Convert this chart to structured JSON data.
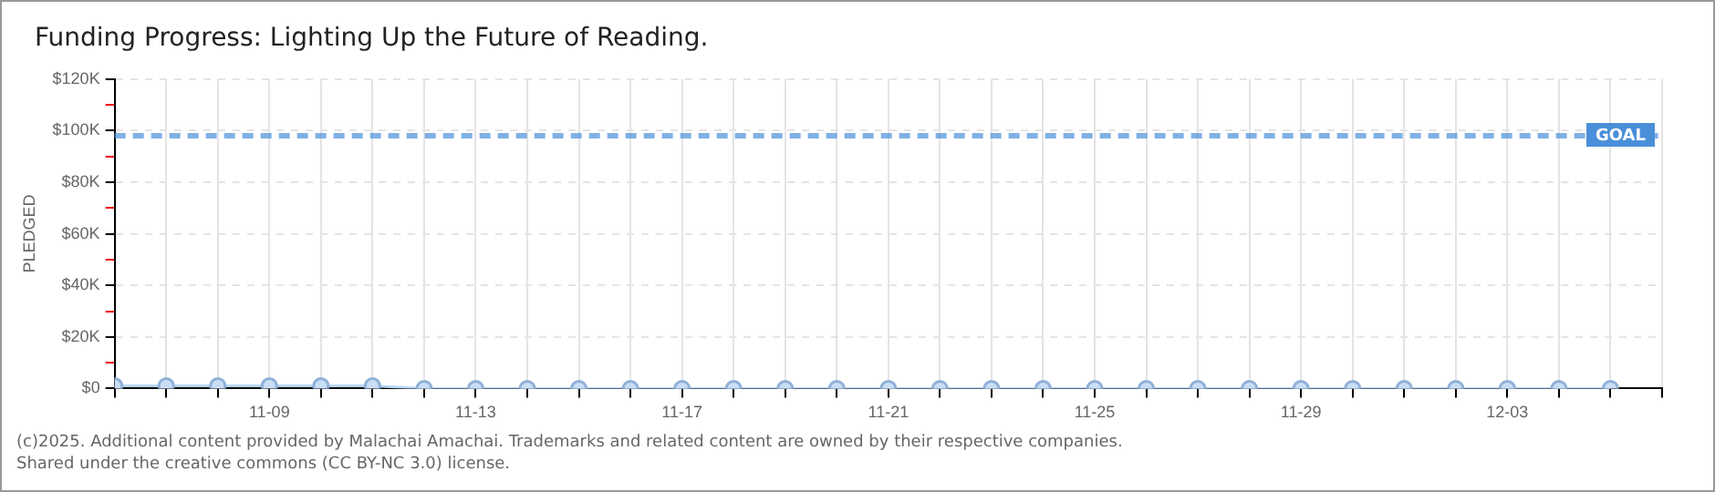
{
  "chart_data": {
    "type": "line",
    "title": "Funding Progress: Lighting Up the Future of Reading.",
    "ylabel": "PLEDGED",
    "x": [
      "--11-06",
      "--11-07",
      "--11-08",
      "--11-09",
      "--11-10",
      "--11-11",
      "--11-12",
      "--11-13",
      "--11-14",
      "--11-15",
      "--11-16",
      "--11-17",
      "--11-18",
      "--11-19",
      "--11-20",
      "--11-21",
      "--11-22",
      "--11-23",
      "--11-24",
      "--11-25",
      "--11-26",
      "--11-27",
      "--11-28",
      "--11-29",
      "--11-30",
      "--12-01",
      "--12-02",
      "--12-03",
      "--12-04",
      "--12-05"
    ],
    "series": [
      {
        "color": "#b8d6f5",
        "values": [
          1000,
          1000,
          1000,
          1000,
          1000,
          1000,
          0,
          0,
          0,
          0,
          0,
          0,
          0,
          0,
          0,
          0,
          0,
          0,
          0,
          0,
          0,
          0,
          0,
          0,
          0,
          0,
          0,
          0,
          0,
          0
        ]
      }
    ],
    "xlim": [
      "--11-06",
      "--12-06"
    ],
    "xticks": [
      {
        "value": "--11-06",
        "label": null
      },
      {
        "value": "--11-07",
        "label": null
      },
      {
        "value": "--11-08",
        "label": null
      },
      {
        "value": "--11-09",
        "label": "11-09"
      },
      {
        "value": "--11-10",
        "label": null
      },
      {
        "value": "--11-11",
        "label": null
      },
      {
        "value": "--11-12",
        "label": null
      },
      {
        "value": "--11-13",
        "label": "11-13"
      },
      {
        "value": "--11-14",
        "label": null
      },
      {
        "value": "--11-15",
        "label": null
      },
      {
        "value": "--11-16",
        "label": null
      },
      {
        "value": "--11-17",
        "label": "11-17"
      },
      {
        "value": "--11-18",
        "label": null
      },
      {
        "value": "--11-19",
        "label": null
      },
      {
        "value": "--11-20",
        "label": null
      },
      {
        "value": "--11-21",
        "label": "11-21"
      },
      {
        "value": "--11-22",
        "label": null
      },
      {
        "value": "--11-23",
        "label": null
      },
      {
        "value": "--11-24",
        "label": null
      },
      {
        "value": "--11-25",
        "label": "11-25"
      },
      {
        "value": "--11-26",
        "label": null
      },
      {
        "value": "--11-27",
        "label": null
      },
      {
        "value": "--11-28",
        "label": null
      },
      {
        "value": "--11-29",
        "label": "11-29"
      },
      {
        "value": "--11-30",
        "label": null
      },
      {
        "value": "--12-01",
        "label": null
      },
      {
        "value": "--12-02",
        "label": null
      },
      {
        "value": "--12-03",
        "label": "12-03"
      },
      {
        "value": "--12-04",
        "label": null
      },
      {
        "value": "--12-05",
        "label": null
      },
      {
        "value": "--12-06",
        "label": null
      }
    ],
    "ylim": [
      0,
      120000
    ],
    "yticks": [
      {
        "value": 0,
        "label": "$0"
      },
      {
        "value": 10000,
        "label": null
      },
      {
        "value": 20000,
        "label": "$20K"
      },
      {
        "value": 30000,
        "label": null
      },
      {
        "value": 40000,
        "label": "$40K"
      },
      {
        "value": 50000,
        "label": null
      },
      {
        "value": 60000,
        "label": "$60K"
      },
      {
        "value": 70000,
        "label": null
      },
      {
        "value": 80000,
        "label": "$80K"
      },
      {
        "value": 90000,
        "label": null
      },
      {
        "value": 100000,
        "label": "$100K"
      },
      {
        "value": 110000,
        "label": null
      },
      {
        "value": 120000,
        "label": "$120K"
      }
    ],
    "ref_lines": [
      {
        "axis": "y",
        "value": 98000,
        "label": "GOAL",
        "color": "#4a8fd9",
        "line_style": "dashed"
      }
    ],
    "annotations": [
      "(c)2025. Additional content provided by Malachai Amachai. Trademarks and related content are owned by their respective companies.",
      "Shared under the creative commons (CC BY-NC 3.0) license."
    ],
    "grid": true,
    "marker": "circle",
    "line_style": "solid",
    "legend": false
  }
}
